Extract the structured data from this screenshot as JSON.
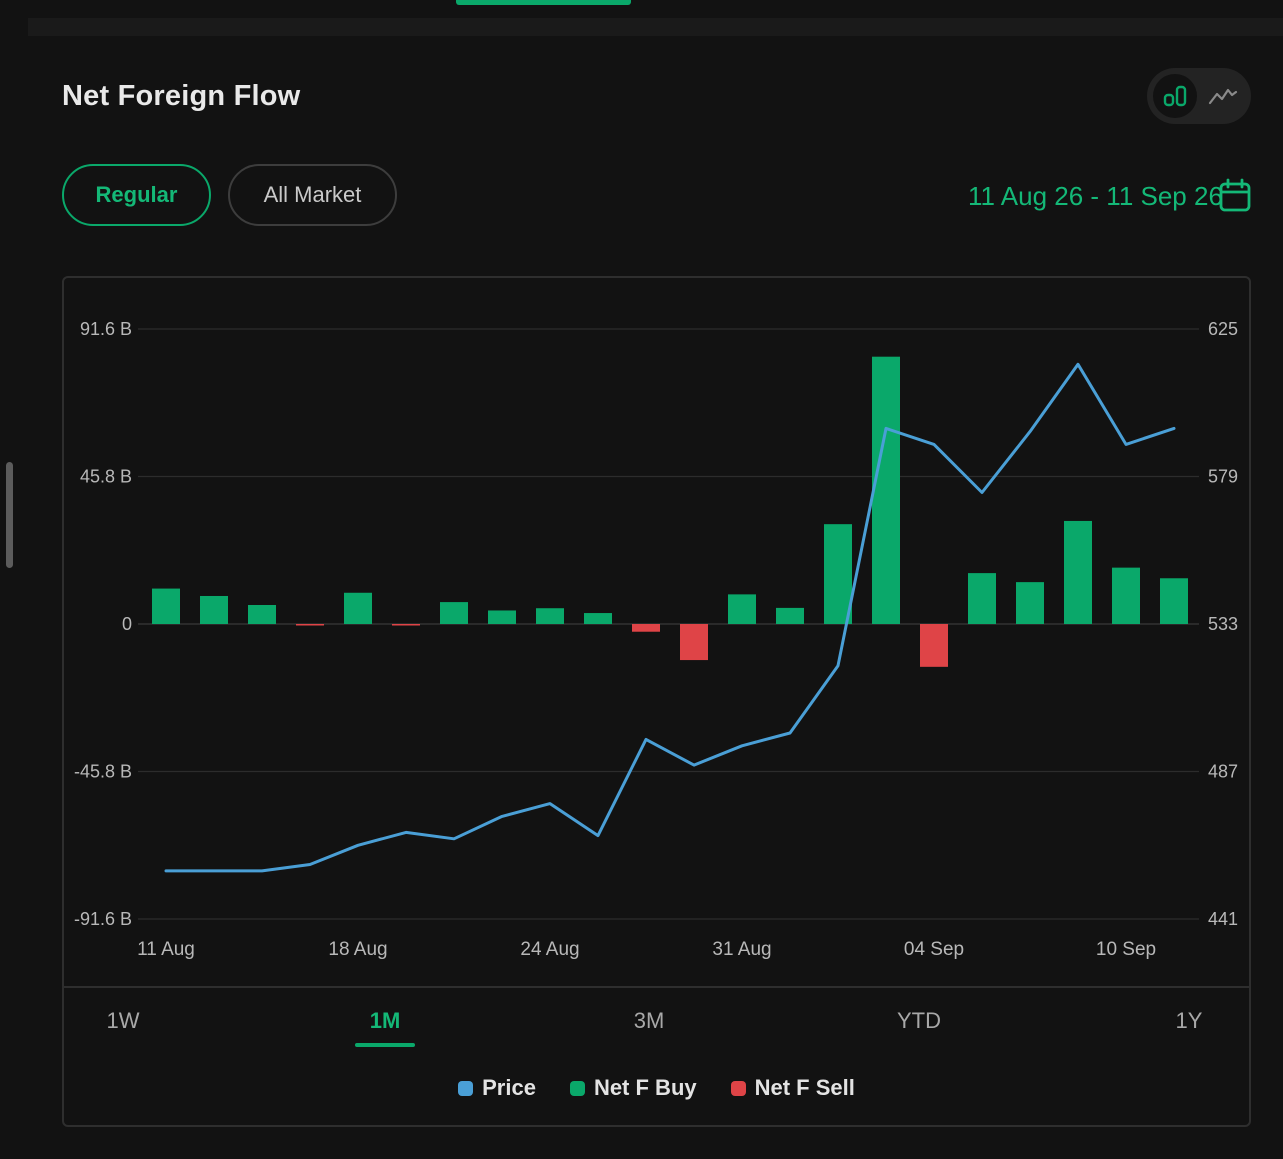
{
  "header": {
    "title": "Net Foreign Flow"
  },
  "view_toggle": {
    "active": "bar",
    "options": [
      "bar-chart-icon",
      "line-chart-icon"
    ]
  },
  "filters": {
    "regular_label": "Regular",
    "all_market_label": "All Market",
    "active": "Regular",
    "date_range": "11 Aug 26 - 11 Sep 26"
  },
  "period_tabs": {
    "items": [
      "1W",
      "1M",
      "3M",
      "YTD",
      "1Y"
    ],
    "active": "1M"
  },
  "colors": {
    "accent": "#0aa86a",
    "price": "#4a9fd6",
    "buy": "#0aa86a",
    "sell": "#df4447"
  },
  "chart_data": {
    "type": "bar",
    "title": "",
    "xlabel": "",
    "ylabel": "",
    "y_left": {
      "ticks": [
        "91.6 B",
        "45.8 B",
        "0",
        "-45.8 B",
        "-91.6 B"
      ],
      "range": [
        -91.6,
        91.6
      ],
      "unit": "B"
    },
    "y_right": {
      "ticks": [
        "625",
        "579",
        "533",
        "487",
        "441"
      ],
      "range": [
        441,
        625
      ]
    },
    "x_tick_labels": [
      "11 Aug",
      "18 Aug",
      "24 Aug",
      "31 Aug",
      "04 Sep",
      "10 Sep"
    ],
    "x_tick_index": [
      0,
      4,
      8,
      12,
      16,
      20
    ],
    "grid": true,
    "legend": {
      "position": "bottom",
      "items": [
        "Price",
        "Net F Buy",
        "Net F Sell"
      ]
    },
    "series": [
      {
        "name": "Price",
        "type": "line",
        "axis": "right",
        "values": [
          456,
          456,
          456,
          458,
          464,
          468,
          466,
          473,
          477,
          467,
          497,
          489,
          495,
          499,
          520,
          594,
          589,
          574,
          593,
          614,
          589,
          594
        ]
      },
      {
        "name": "Net F Buy",
        "type": "bar",
        "axis": "left",
        "values": [
          11,
          8.7,
          5.9,
          0,
          9.7,
          0,
          6.8,
          4.2,
          4.9,
          3.4,
          0,
          0,
          9.2,
          5,
          31,
          83,
          0,
          15.8,
          13,
          32,
          17.5,
          14.2
        ]
      },
      {
        "name": "Net F Sell",
        "type": "bar",
        "axis": "left",
        "values": [
          0,
          0,
          0,
          -0.4,
          0,
          -0.3,
          0,
          0,
          0,
          0,
          -2.4,
          -11.2,
          0,
          0,
          0,
          0,
          -13.3,
          0,
          0,
          0,
          0,
          0
        ]
      }
    ]
  }
}
